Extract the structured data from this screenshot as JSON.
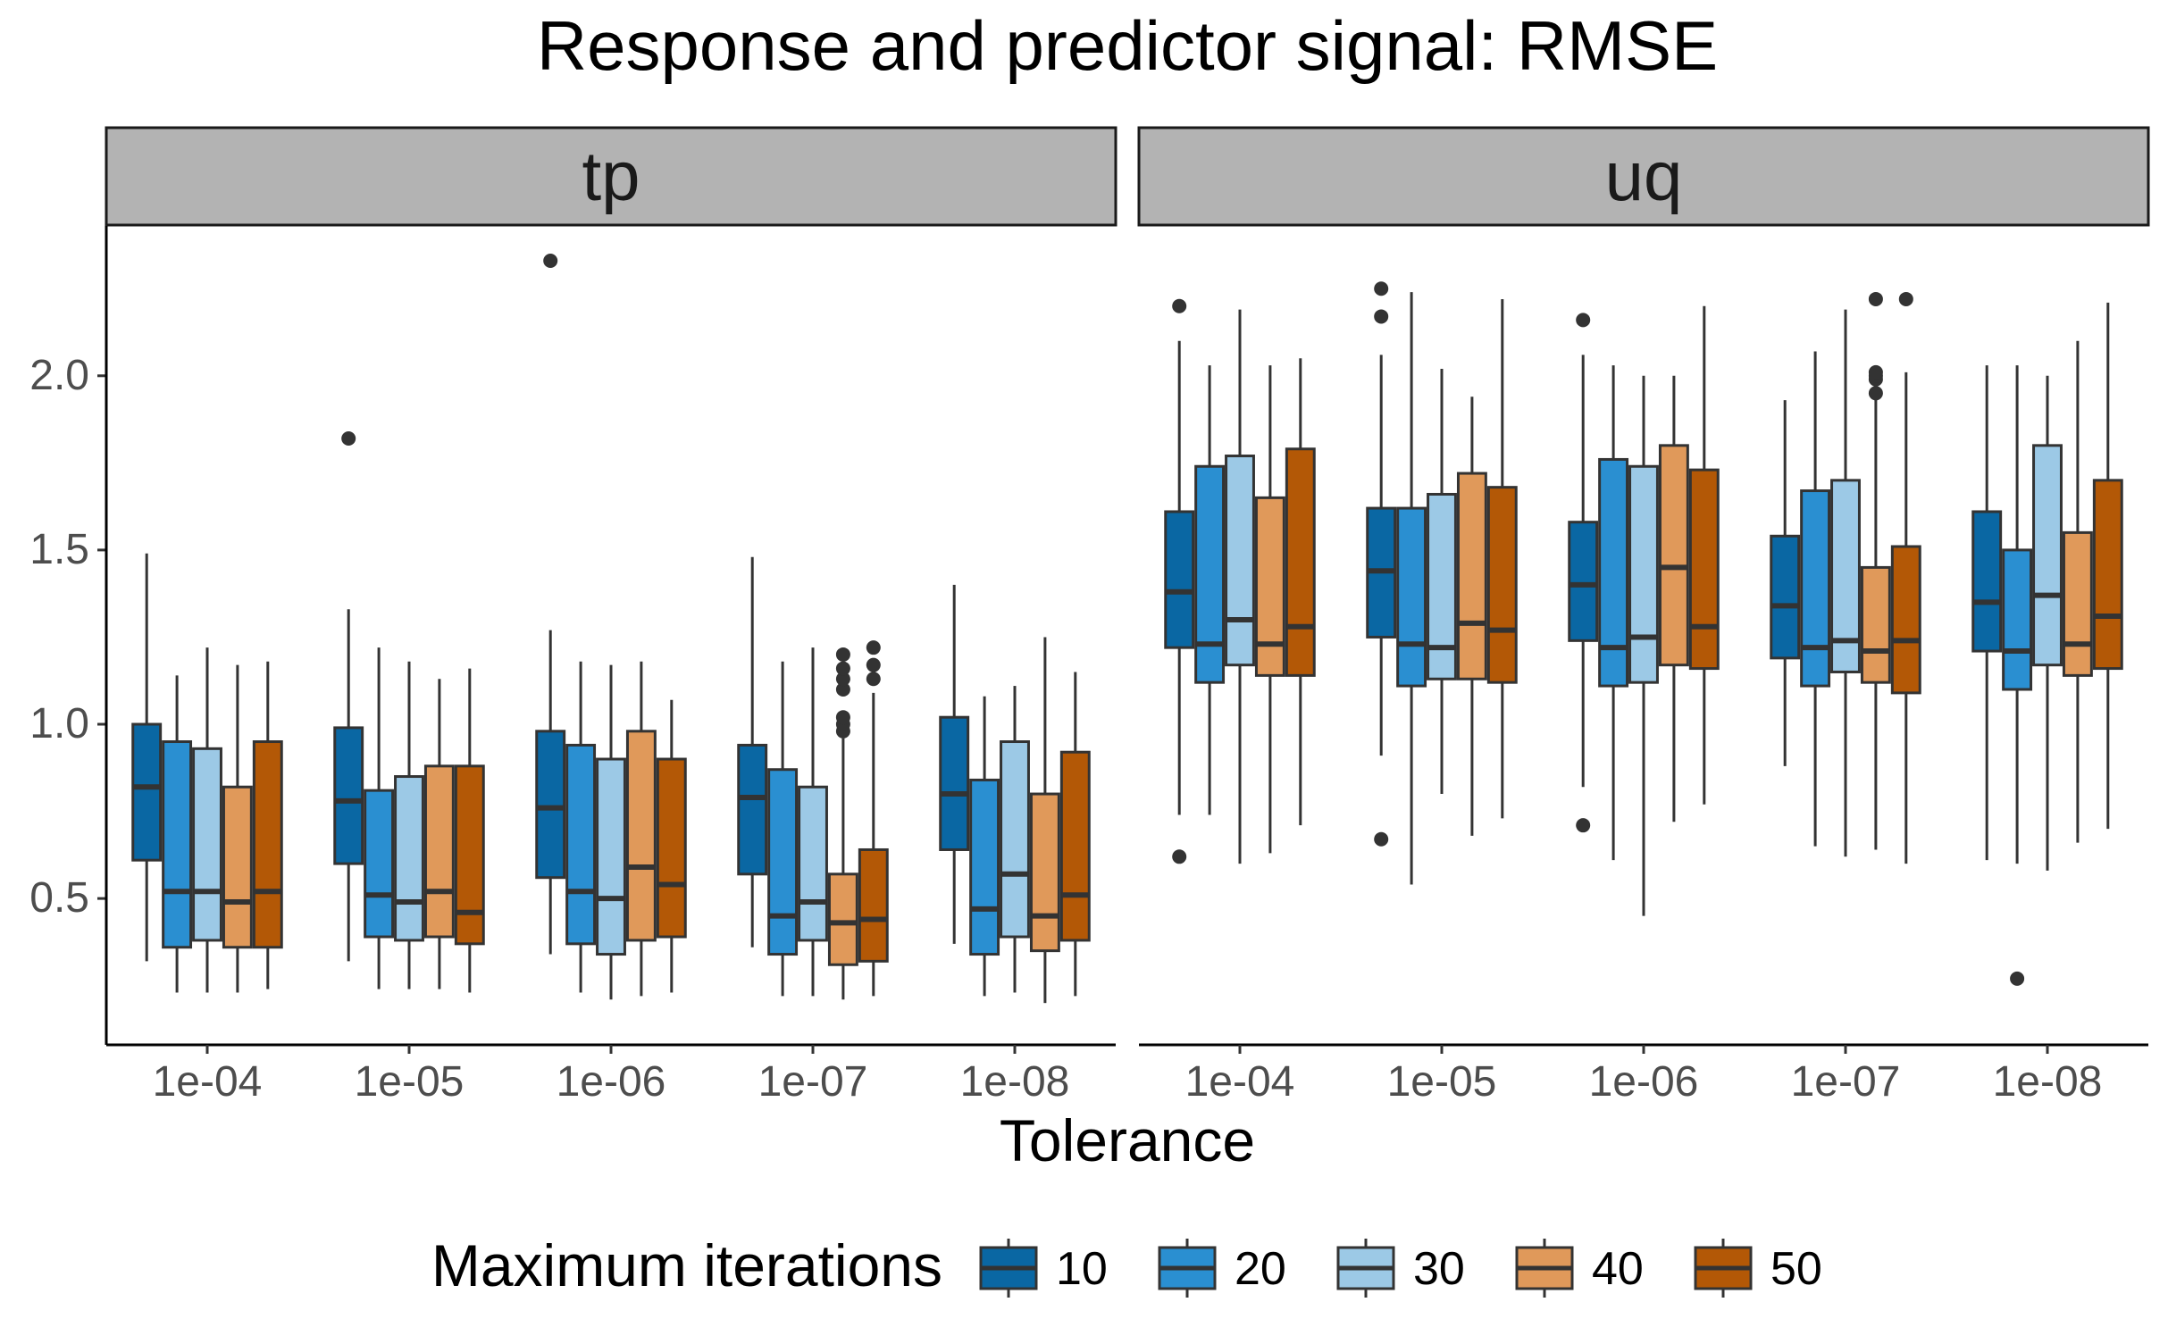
{
  "chart_data": {
    "type": "boxplot",
    "title": "Response and predictor signal: RMSE",
    "xlabel": "Tolerance",
    "ylabel": "",
    "ylim": [
      0.08,
      2.43
    ],
    "yticks": [
      0.5,
      1.0,
      1.5,
      2.0
    ],
    "ytick_labels": [
      "0.5",
      "1.0",
      "1.5",
      "2.0"
    ],
    "grid": false,
    "legend": {
      "title": "Maximum iterations",
      "position": "bottom",
      "entries": [
        "10",
        "20",
        "30",
        "40",
        "50"
      ]
    },
    "colors": [
      "#0a67a3",
      "#2a8fd1",
      "#9cc9e6",
      "#e0995a",
      "#b35806"
    ],
    "categories": [
      "1e-04",
      "1e-05",
      "1e-06",
      "1e-07",
      "1e-08"
    ],
    "box_stats_order": [
      "min",
      "q1",
      "median",
      "q3",
      "max",
      "outliers"
    ],
    "facets": [
      {
        "name": "tp",
        "groups": [
          [
            [
              0.32,
              0.61,
              0.82,
              1.0,
              1.49,
              []
            ],
            [
              0.23,
              0.36,
              0.52,
              0.95,
              1.14,
              []
            ],
            [
              0.23,
              0.38,
              0.52,
              0.93,
              1.22,
              []
            ],
            [
              0.23,
              0.36,
              0.49,
              0.82,
              1.17,
              []
            ],
            [
              0.24,
              0.36,
              0.52,
              0.95,
              1.18,
              []
            ]
          ],
          [
            [
              0.32,
              0.6,
              0.78,
              0.99,
              1.33,
              [
                1.82
              ]
            ],
            [
              0.24,
              0.39,
              0.51,
              0.81,
              1.22,
              []
            ],
            [
              0.24,
              0.38,
              0.49,
              0.85,
              1.18,
              []
            ],
            [
              0.24,
              0.39,
              0.52,
              0.88,
              1.13,
              []
            ],
            [
              0.23,
              0.37,
              0.46,
              0.88,
              1.16,
              []
            ]
          ],
          [
            [
              0.34,
              0.56,
              0.76,
              0.98,
              1.27,
              [
                2.33
              ]
            ],
            [
              0.23,
              0.37,
              0.52,
              0.94,
              1.18,
              []
            ],
            [
              0.21,
              0.34,
              0.5,
              0.9,
              1.17,
              []
            ],
            [
              0.22,
              0.38,
              0.59,
              0.98,
              1.18,
              []
            ],
            [
              0.23,
              0.39,
              0.54,
              0.9,
              1.07,
              []
            ]
          ],
          [
            [
              0.36,
              0.57,
              0.79,
              0.94,
              1.48,
              []
            ],
            [
              0.22,
              0.34,
              0.45,
              0.87,
              1.18,
              []
            ],
            [
              0.22,
              0.38,
              0.49,
              0.82,
              1.22,
              []
            ],
            [
              0.21,
              0.31,
              0.43,
              0.57,
              0.96,
              [
                0.98,
                1.0,
                1.02,
                1.1,
                1.13,
                1.16,
                1.2
              ]
            ],
            [
              0.22,
              0.32,
              0.44,
              0.64,
              1.09,
              [
                1.13,
                1.17,
                1.22
              ]
            ]
          ],
          [
            [
              0.37,
              0.64,
              0.8,
              1.02,
              1.4,
              []
            ],
            [
              0.22,
              0.34,
              0.47,
              0.84,
              1.08,
              []
            ],
            [
              0.23,
              0.39,
              0.57,
              0.95,
              1.11,
              []
            ],
            [
              0.2,
              0.35,
              0.45,
              0.8,
              1.25,
              []
            ],
            [
              0.22,
              0.38,
              0.51,
              0.92,
              1.15,
              []
            ]
          ]
        ]
      },
      {
        "name": "uq",
        "groups": [
          [
            [
              0.74,
              1.22,
              1.38,
              1.61,
              2.1,
              [
                0.62,
                2.2
              ]
            ],
            [
              0.74,
              1.12,
              1.23,
              1.74,
              2.03,
              []
            ],
            [
              0.6,
              1.17,
              1.3,
              1.77,
              2.19,
              []
            ],
            [
              0.63,
              1.14,
              1.23,
              1.65,
              2.03,
              []
            ],
            [
              0.71,
              1.14,
              1.28,
              1.79,
              2.05,
              []
            ]
          ],
          [
            [
              0.91,
              1.25,
              1.44,
              1.62,
              2.06,
              [
                0.67,
                2.17,
                2.25
              ]
            ],
            [
              0.54,
              1.11,
              1.23,
              1.62,
              2.24,
              []
            ],
            [
              0.8,
              1.13,
              1.22,
              1.66,
              2.02,
              []
            ],
            [
              0.68,
              1.13,
              1.29,
              1.72,
              1.94,
              []
            ],
            [
              0.73,
              1.12,
              1.27,
              1.68,
              2.22,
              []
            ]
          ],
          [
            [
              0.82,
              1.24,
              1.4,
              1.58,
              2.06,
              [
                0.71,
                2.16
              ]
            ],
            [
              0.61,
              1.11,
              1.22,
              1.76,
              2.03,
              []
            ],
            [
              0.45,
              1.12,
              1.25,
              1.74,
              2.0,
              []
            ],
            [
              0.72,
              1.17,
              1.45,
              1.8,
              2.0,
              []
            ],
            [
              0.77,
              1.16,
              1.28,
              1.73,
              2.2,
              []
            ]
          ],
          [
            [
              0.88,
              1.19,
              1.34,
              1.54,
              1.93,
              []
            ],
            [
              0.65,
              1.11,
              1.22,
              1.67,
              2.07,
              []
            ],
            [
              0.62,
              1.15,
              1.24,
              1.7,
              2.19,
              []
            ],
            [
              0.64,
              1.12,
              1.21,
              1.45,
              1.94,
              [
                1.95,
                1.99,
                2.0,
                2.01,
                2.22
              ]
            ],
            [
              0.6,
              1.09,
              1.24,
              1.51,
              2.01,
              [
                2.22
              ]
            ]
          ],
          [
            [
              0.61,
              1.21,
              1.35,
              1.61,
              2.03,
              []
            ],
            [
              0.6,
              1.1,
              1.21,
              1.5,
              2.03,
              [
                0.27
              ]
            ],
            [
              0.58,
              1.17,
              1.37,
              1.8,
              2.0,
              []
            ],
            [
              0.66,
              1.14,
              1.23,
              1.55,
              2.1,
              []
            ],
            [
              0.7,
              1.16,
              1.31,
              1.7,
              2.21,
              []
            ]
          ]
        ]
      }
    ]
  }
}
